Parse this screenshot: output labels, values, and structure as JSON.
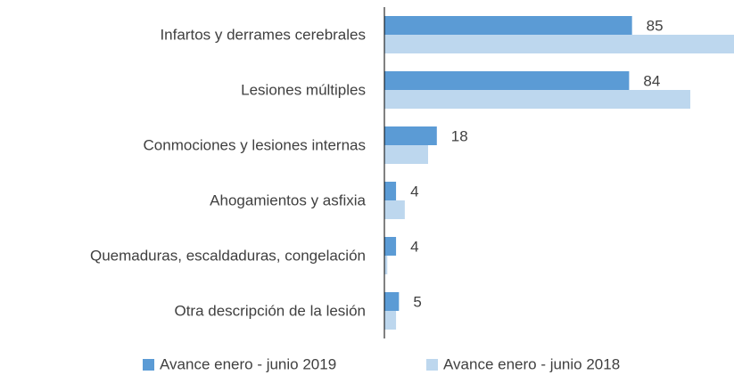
{
  "chart_data": {
    "type": "hbar",
    "categories": [
      "Infartos y derrames cerebrales",
      "Lesiones múltiples",
      "Conmociones y lesiones internas",
      "Ahogamientos y asfixia",
      "Quemaduras, escaldaduras, congelación",
      "Otra descripción de la lesión"
    ],
    "series": [
      {
        "name": "Avance enero - junio 2019",
        "color": "#5b9bd5",
        "values": [
          85,
          84,
          18,
          4,
          4,
          5
        ],
        "labels": true
      },
      {
        "name": "Avance enero - junio 2018",
        "color": "#bdd7ee",
        "values": [
          120,
          105,
          15,
          7,
          1,
          4
        ],
        "labels": false
      }
    ],
    "xlim": [
      0,
      120
    ],
    "legend": "bottom"
  }
}
